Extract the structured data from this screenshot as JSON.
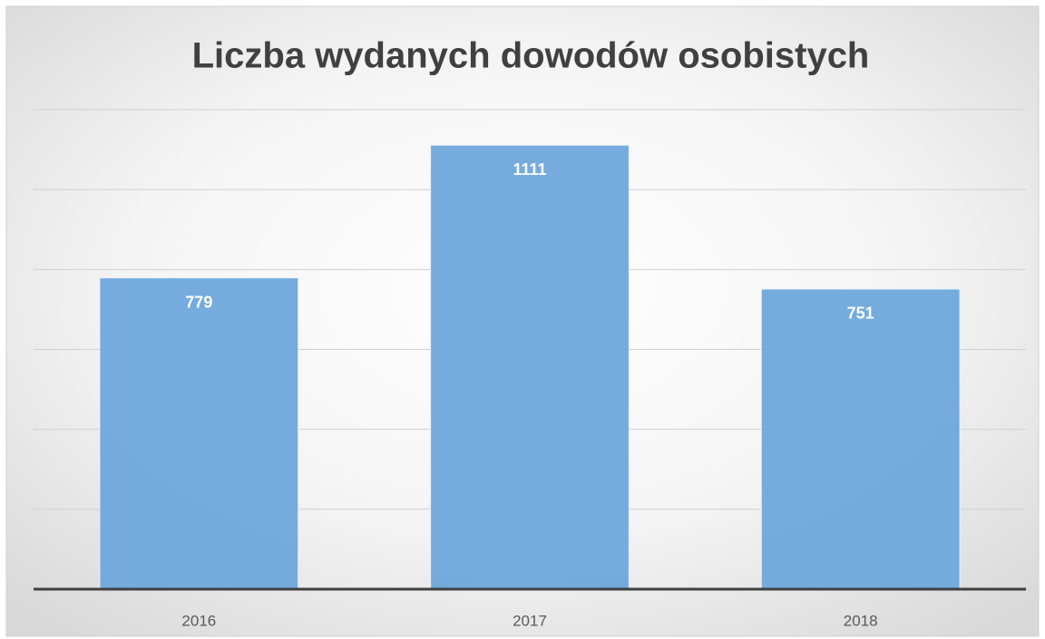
{
  "chart_data": {
    "type": "bar",
    "title": "Liczba wydanych dowodów osobistych",
    "categories": [
      "2016",
      "2017",
      "2018"
    ],
    "values": [
      779,
      1111,
      751
    ],
    "color": "#6fa6db",
    "ylim": [
      0,
      1200
    ],
    "yticks": [
      0,
      200,
      400,
      600,
      800,
      1000,
      1200
    ],
    "grid": true
  }
}
